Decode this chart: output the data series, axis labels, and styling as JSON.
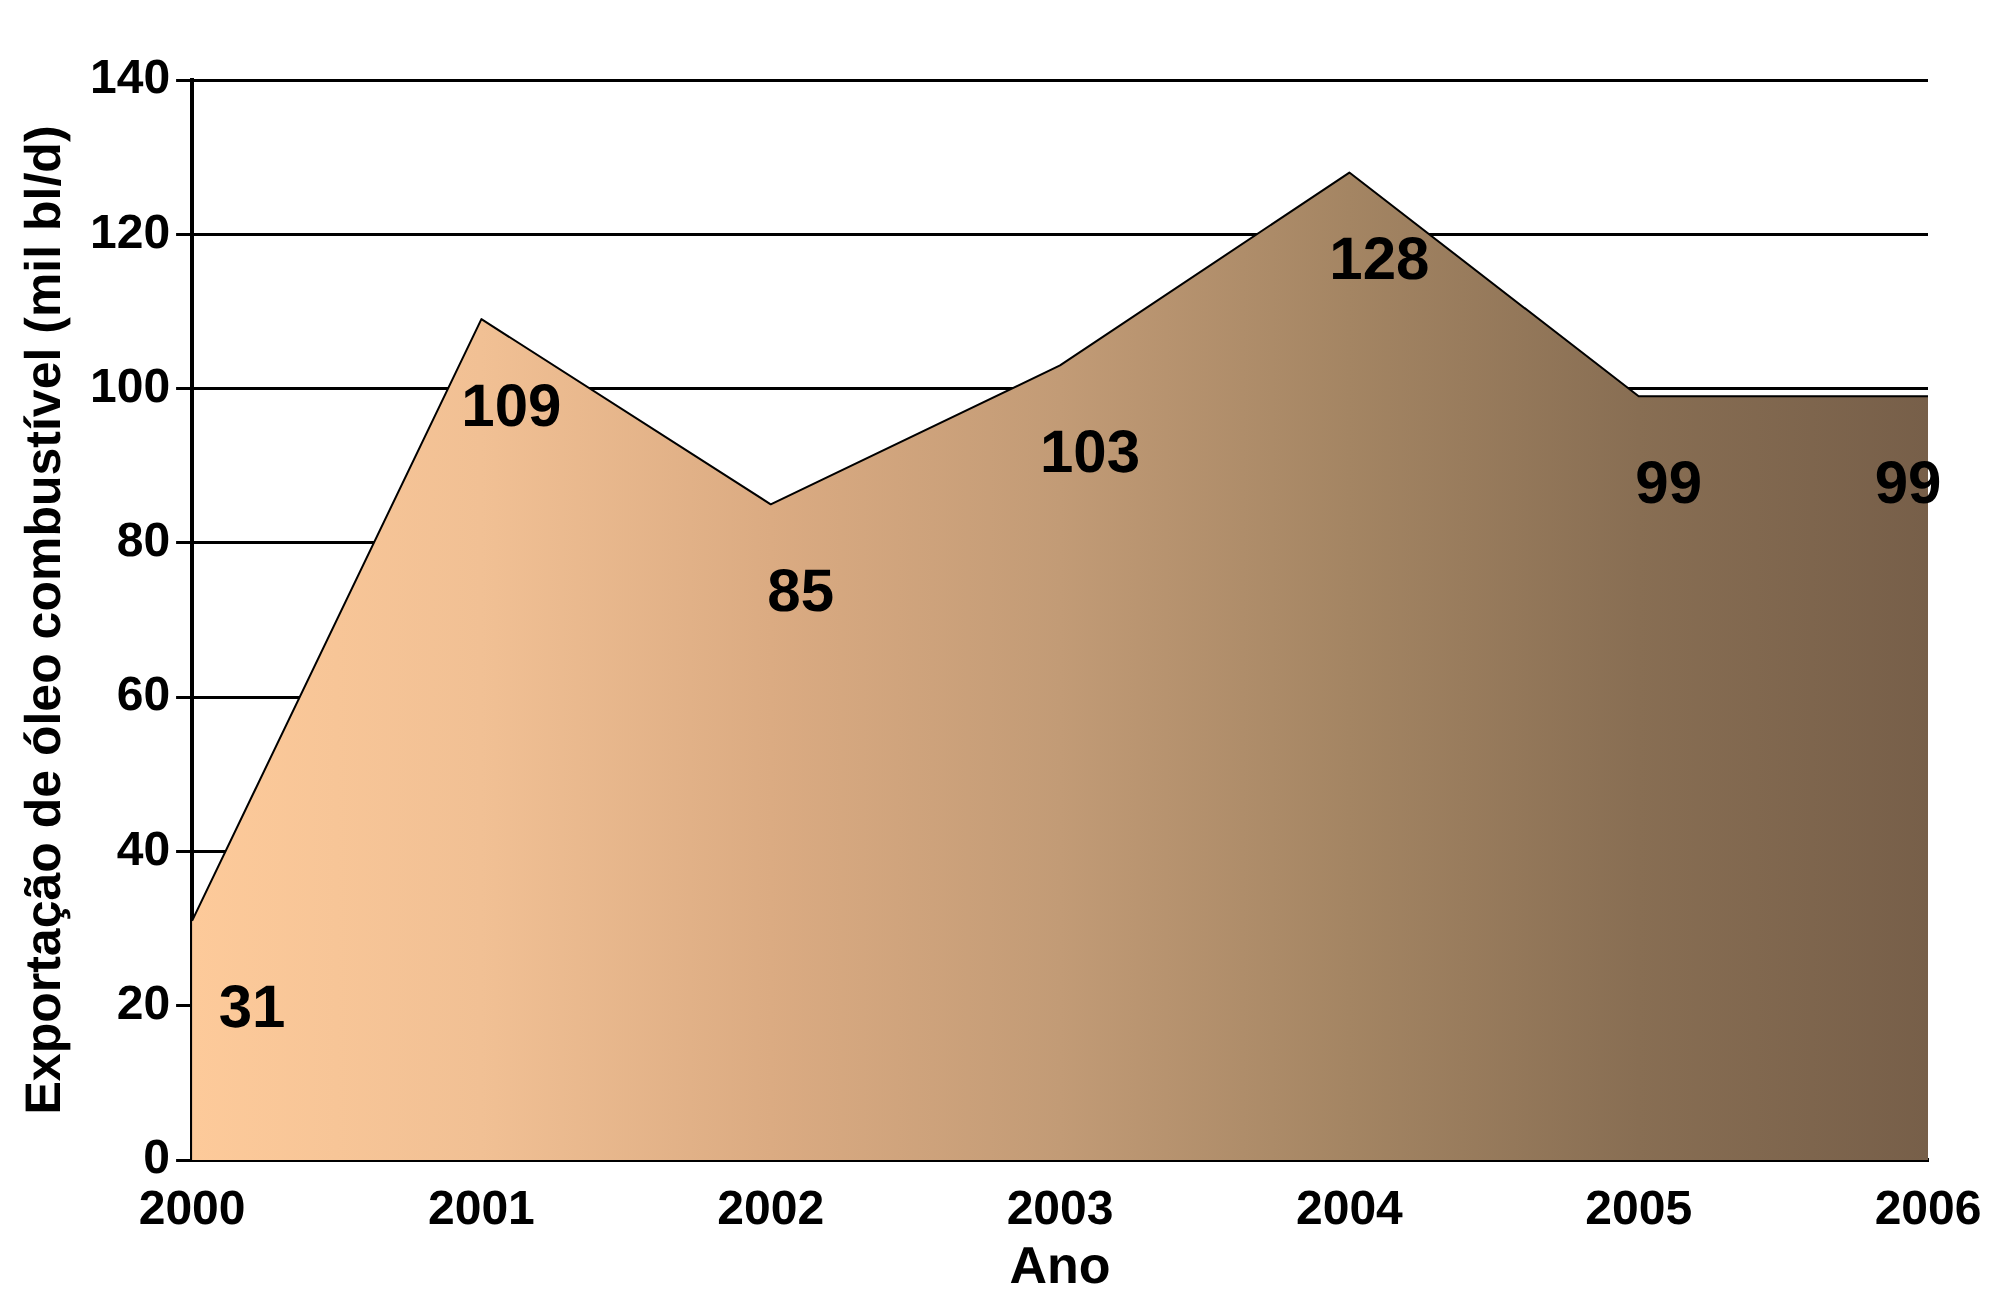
{
  "chart_data": {
    "type": "area",
    "xlabel": "Ano",
    "ylabel": "Exportação de óleo combustível (mil bl/d)",
    "x": [
      2000,
      2001,
      2002,
      2003,
      2004,
      2005,
      2006
    ],
    "values": [
      31,
      109,
      85,
      103,
      128,
      99,
      99
    ],
    "colors": [
      "#fdca9a",
      "#f1c094",
      "#dbab82",
      "#c29b76",
      "#a48563",
      "#886e53",
      "#775f49"
    ],
    "xlim": [
      2000,
      2006
    ],
    "xticks": [
      2000,
      2001,
      2002,
      2003,
      2004,
      2005,
      2006
    ],
    "ylim": [
      0,
      140
    ],
    "yticks": [
      0,
      20,
      40,
      60,
      80,
      100,
      120,
      140
    ],
    "grid": "y",
    "data_labels": true
  }
}
